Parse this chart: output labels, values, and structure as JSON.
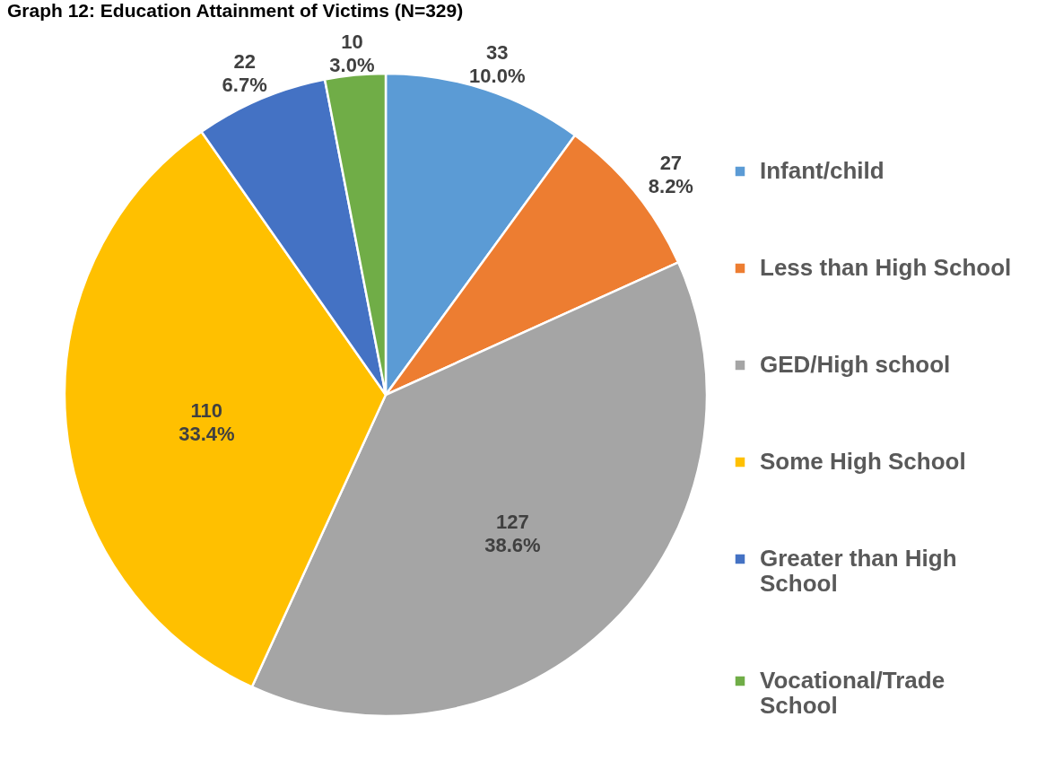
{
  "chart_data": {
    "type": "pie",
    "title": "Graph 12: Education Attainment of Victims (N=329)",
    "categories": [
      "Infant/child",
      "Less than High School",
      "GED/High school",
      "Some High School",
      "Greater than High School",
      "Vocational/Trade School"
    ],
    "values": [
      33,
      27,
      127,
      110,
      22,
      10
    ],
    "colors": [
      "#5b9bd5",
      "#ed7d31",
      "#a5a5a5",
      "#ffc000",
      "#4472c4",
      "#70ad47"
    ],
    "value_labels": [
      "33\n10.0%",
      "27\n8.2%",
      "127\n38.6%",
      "110\n33.4%",
      "22\n6.7%",
      "10\n3.0%"
    ],
    "legend": "right"
  }
}
